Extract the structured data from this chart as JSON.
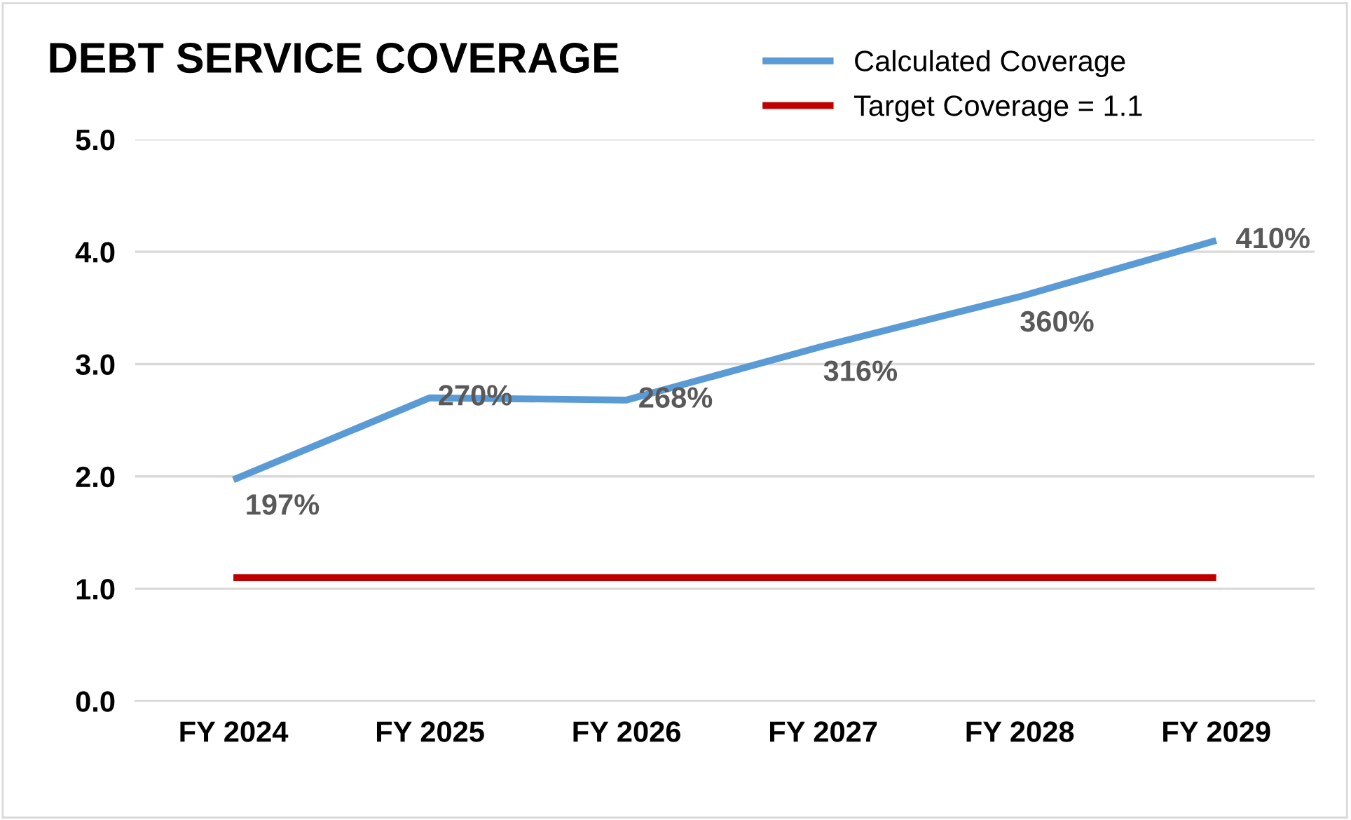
{
  "chart_data": {
    "type": "line",
    "title": "DEBT SERVICE COVERAGE",
    "categories": [
      "FY 2024",
      "FY 2025",
      "FY 2026",
      "FY 2027",
      "FY 2028",
      "FY 2029"
    ],
    "series": [
      {
        "name": "Calculated Coverage",
        "color": "#5b9bd5",
        "values": [
          1.97,
          2.7,
          2.68,
          3.16,
          3.6,
          4.1
        ],
        "value_labels": [
          "197%",
          "270%",
          "268%",
          "316%",
          "360%",
          "410%"
        ]
      },
      {
        "name": "Target Coverage = 1.1",
        "color": "#c00000",
        "values": [
          1.1,
          1.1,
          1.1,
          1.1,
          1.1,
          1.1
        ]
      }
    ],
    "ylim": [
      0,
      5
    ],
    "yticks": [
      {
        "value": 0,
        "label": "0.0"
      },
      {
        "value": 1,
        "label": "1.0"
      },
      {
        "value": 2,
        "label": "2.0"
      },
      {
        "value": 3,
        "label": "3.0"
      },
      {
        "value": 4,
        "label": "4.0"
      },
      {
        "value": 5,
        "label": "5.0"
      }
    ],
    "grid": "y",
    "legend": "top right",
    "marker": "none",
    "line_style": "solid"
  }
}
